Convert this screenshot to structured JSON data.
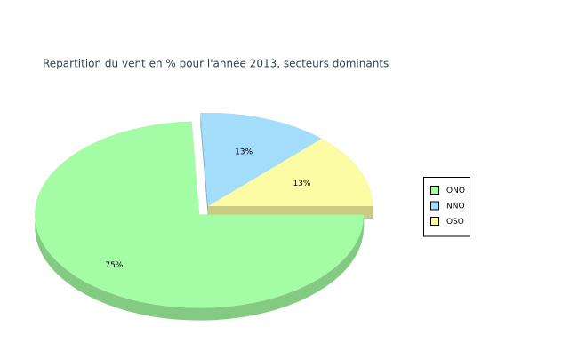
{
  "chart_data": {
    "type": "pie",
    "title": "Repartition du vent en % pour l'année 2013, secteurs dominants",
    "categories": [
      "ONO",
      "NNO",
      "OSO"
    ],
    "values": [
      75,
      13,
      13
    ],
    "value_labels": [
      "75%",
      "13%",
      "13%"
    ],
    "colors": [
      "#a4fca4",
      "#a4dcfc",
      "#fcfca4"
    ],
    "legend": "right"
  }
}
